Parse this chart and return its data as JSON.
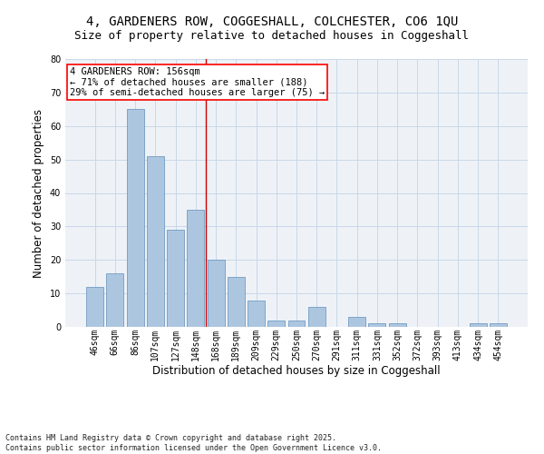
{
  "title": "4, GARDENERS ROW, COGGESHALL, COLCHESTER, CO6 1QU",
  "subtitle": "Size of property relative to detached houses in Coggeshall",
  "xlabel": "Distribution of detached houses by size in Coggeshall",
  "ylabel": "Number of detached properties",
  "footer_line1": "Contains HM Land Registry data © Crown copyright and database right 2025.",
  "footer_line2": "Contains public sector information licensed under the Open Government Licence v3.0.",
  "annotation_line1": "4 GARDENERS ROW: 156sqm",
  "annotation_line2": "← 71% of detached houses are smaller (188)",
  "annotation_line3": "29% of semi-detached houses are larger (75) →",
  "categories": [
    "46sqm",
    "66sqm",
    "86sqm",
    "107sqm",
    "127sqm",
    "148sqm",
    "168sqm",
    "189sqm",
    "209sqm",
    "229sqm",
    "250sqm",
    "270sqm",
    "291sqm",
    "311sqm",
    "331sqm",
    "352sqm",
    "372sqm",
    "393sqm",
    "413sqm",
    "434sqm",
    "454sqm"
  ],
  "values": [
    12,
    16,
    65,
    51,
    29,
    35,
    20,
    15,
    8,
    2,
    2,
    6,
    0,
    3,
    1,
    1,
    0,
    0,
    0,
    1,
    1
  ],
  "bar_color": "#adc6e0",
  "bar_edge_color": "#6090bb",
  "grid_color": "#c8d8e8",
  "background_color": "#eef2f7",
  "ref_line_color": "#cc0000",
  "ylim": [
    0,
    80
  ],
  "yticks": [
    0,
    10,
    20,
    30,
    40,
    50,
    60,
    70,
    80
  ],
  "title_fontsize": 10,
  "subtitle_fontsize": 9,
  "tick_fontsize": 7,
  "ylabel_fontsize": 8.5,
  "xlabel_fontsize": 8.5,
  "footer_fontsize": 6,
  "annot_fontsize": 7.5
}
